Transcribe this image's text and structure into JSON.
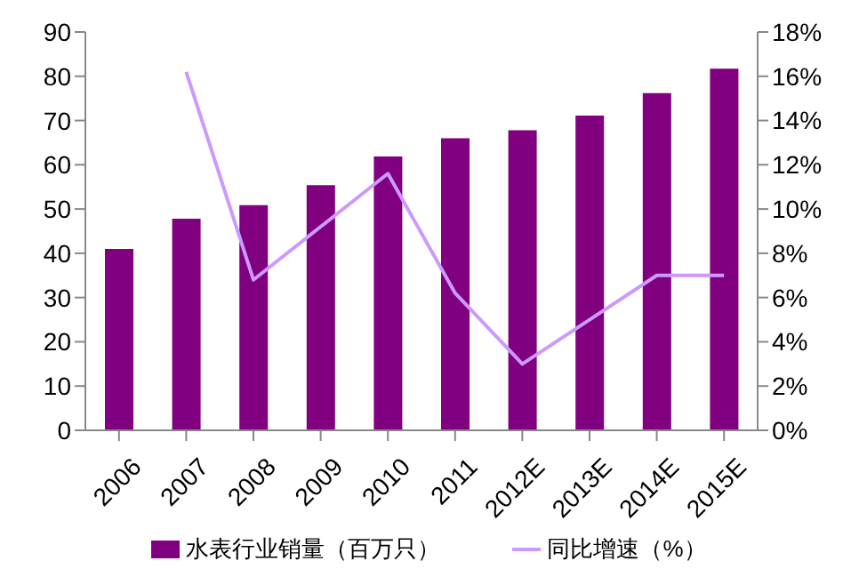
{
  "chart_data": {
    "type": "bar",
    "categories": [
      "2006",
      "2007",
      "2008",
      "2009",
      "2010",
      "2011",
      "2012E",
      "2013E",
      "2014E",
      "2015E"
    ],
    "series": [
      {
        "name": "水表行业销量（百万只）",
        "color": "#800080",
        "values": [
          41.0,
          47.8,
          50.9,
          55.4,
          61.9,
          66.0,
          67.8,
          71.1,
          76.2,
          81.7
        ]
      },
      {
        "name": "同比增速（%）",
        "type": "line",
        "axis": "y2",
        "color": "#cc99ff",
        "values": [
          null,
          16.2,
          6.8,
          9.2,
          11.6,
          6.2,
          3.0,
          5.0,
          7.0,
          7.0
        ]
      }
    ],
    "ylim": [
      0,
      90
    ],
    "yticks": [
      0,
      10,
      20,
      30,
      40,
      50,
      60,
      70,
      80,
      90
    ],
    "y2lim": [
      0,
      18
    ],
    "y2ticks": [
      {
        "value": 0,
        "label": "0%"
      },
      {
        "value": 2,
        "label": "2%"
      },
      {
        "value": 4,
        "label": "4%"
      },
      {
        "value": 6,
        "label": "6%"
      },
      {
        "value": 8,
        "label": "8%"
      },
      {
        "value": 10,
        "label": "10%"
      },
      {
        "value": 12,
        "label": "12%"
      },
      {
        "value": 14,
        "label": "14%"
      },
      {
        "value": 16,
        "label": "16%"
      },
      {
        "value": 18,
        "label": "18%"
      }
    ],
    "grid": false,
    "legend": "bottom",
    "marker": "none",
    "line_style": "solid"
  }
}
